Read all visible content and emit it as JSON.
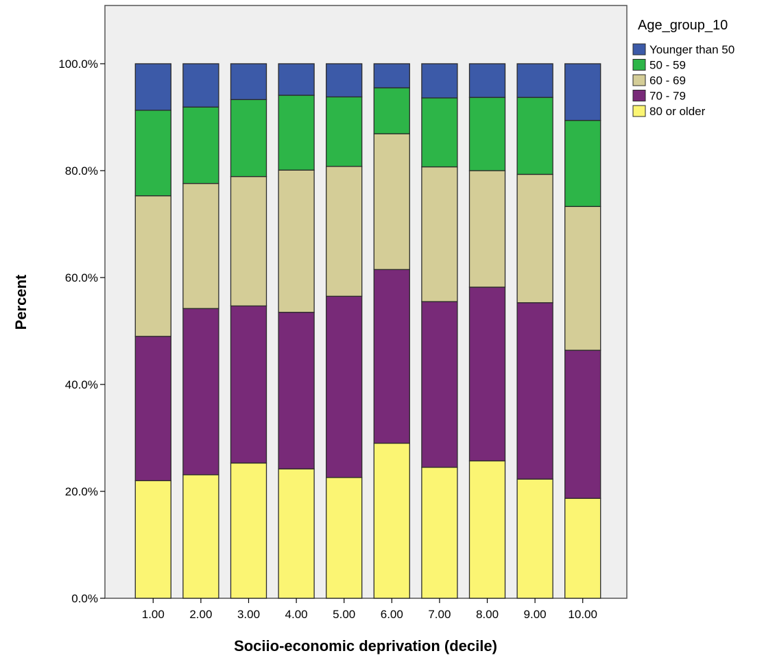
{
  "chart_data": {
    "type": "bar",
    "stacked": true,
    "xlabel": "Sociio-economic deprivation (decile)",
    "ylabel": "Percent",
    "ylim": [
      0,
      100
    ],
    "yticks": [
      0,
      20,
      40,
      60,
      80,
      100
    ],
    "ytick_labels": [
      "0.0%",
      "20.0%",
      "40.0%",
      "60.0%",
      "80.0%",
      "100.0%"
    ],
    "categories": [
      "1.00",
      "2.00",
      "3.00",
      "4.00",
      "5.00",
      "6.00",
      "7.00",
      "8.00",
      "9.00",
      "10.00"
    ],
    "legend_title": "Age_group_10",
    "legend_position": "right",
    "grid": false,
    "plot_background": "#efefef",
    "series": [
      {
        "name": "80 or older",
        "color": "#fbf573",
        "values": [
          22.0,
          23.1,
          25.3,
          24.2,
          22.6,
          29.0,
          24.5,
          25.7,
          22.3,
          18.7
        ]
      },
      {
        "name": "70 - 79",
        "color": "#782a78",
        "values": [
          27.0,
          31.1,
          29.4,
          29.3,
          33.9,
          32.5,
          31.0,
          32.5,
          33.0,
          27.7
        ]
      },
      {
        "name": "60 - 69",
        "color": "#d4cd97",
        "values": [
          26.3,
          23.4,
          24.2,
          26.6,
          24.3,
          25.4,
          25.2,
          21.8,
          24.0,
          26.9
        ]
      },
      {
        "name": "50 - 59",
        "color": "#2db548",
        "values": [
          16.0,
          14.3,
          14.4,
          14.0,
          13.0,
          8.6,
          12.9,
          13.7,
          14.4,
          16.1
        ]
      },
      {
        "name": "Younger than 50",
        "color": "#3c5aa8",
        "values": [
          8.7,
          8.1,
          6.7,
          5.9,
          6.2,
          4.5,
          6.4,
          6.3,
          6.3,
          10.6
        ]
      }
    ],
    "legend_order": [
      "Younger than 50",
      "50 - 59",
      "60 - 69",
      "70 - 79",
      "80 or older"
    ]
  }
}
